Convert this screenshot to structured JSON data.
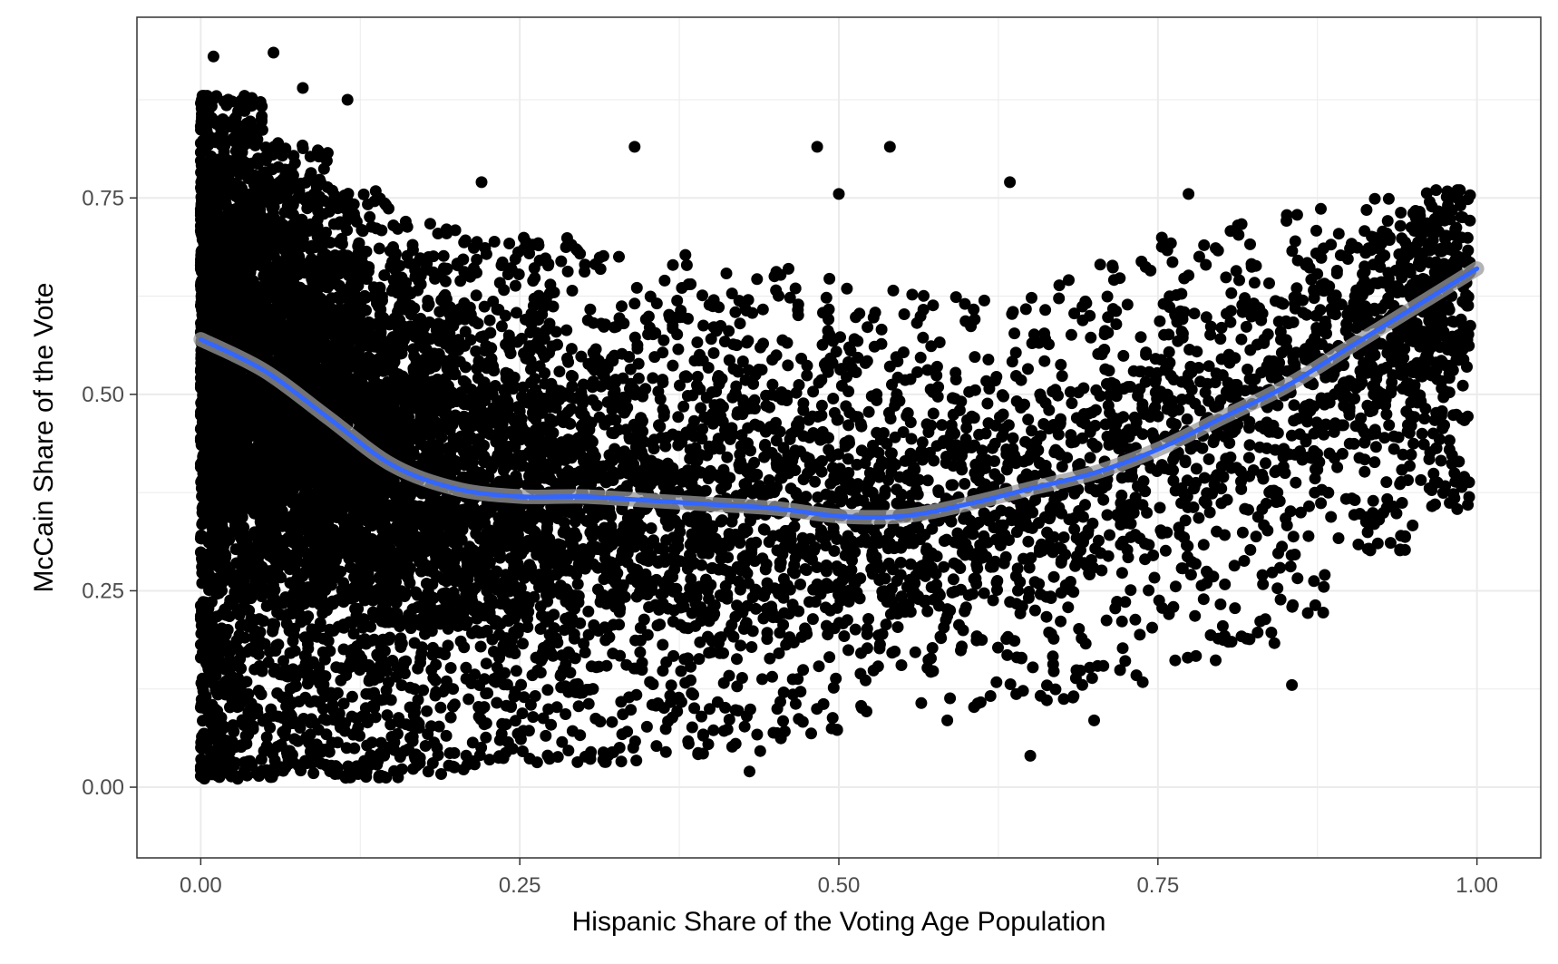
{
  "chart_data": {
    "type": "scatter",
    "title": "",
    "xlabel": "Hispanic Share of the Voting Age Population",
    "ylabel": "McCain Share of the Vote",
    "xlim": [
      -0.05,
      1.05
    ],
    "ylim": [
      -0.09,
      0.98
    ],
    "x_ticks": [
      0.0,
      0.25,
      0.5,
      0.75,
      1.0
    ],
    "x_tick_labels": [
      "0.00",
      "0.25",
      "0.50",
      "0.75",
      "1.00"
    ],
    "y_ticks": [
      0.0,
      0.25,
      0.5,
      0.75
    ],
    "y_tick_labels": [
      "0.00",
      "0.25",
      "0.50",
      "0.75"
    ],
    "grid": true,
    "legend": "none",
    "colors": {
      "points": "#000000",
      "smooth_line": "#3366ff",
      "confidence_band": "#999999",
      "grid": "#ebebeb",
      "panel_border": "#333333"
    },
    "smooth": {
      "method": "loess",
      "x": [
        0.0,
        0.05,
        0.1,
        0.15,
        0.2,
        0.25,
        0.3,
        0.35,
        0.4,
        0.45,
        0.5,
        0.55,
        0.6,
        0.65,
        0.7,
        0.75,
        0.8,
        0.85,
        0.9,
        0.95,
        1.0
      ],
      "y": [
        0.57,
        0.53,
        0.47,
        0.41,
        0.38,
        0.37,
        0.37,
        0.365,
        0.36,
        0.355,
        0.345,
        0.345,
        0.36,
        0.38,
        0.4,
        0.43,
        0.47,
        0.51,
        0.56,
        0.61,
        0.66
      ]
    },
    "outliers": [
      {
        "x": 0.01,
        "y": 0.93
      },
      {
        "x": 0.057,
        "y": 0.935
      },
      {
        "x": 0.08,
        "y": 0.89
      },
      {
        "x": 0.115,
        "y": 0.875
      },
      {
        "x": 0.34,
        "y": 0.815
      },
      {
        "x": 0.483,
        "y": 0.815
      },
      {
        "x": 0.54,
        "y": 0.815
      },
      {
        "x": 0.5,
        "y": 0.755
      },
      {
        "x": 0.634,
        "y": 0.77
      },
      {
        "x": 0.855,
        "y": 0.13
      },
      {
        "x": 0.65,
        "y": 0.04
      },
      {
        "x": 0.43,
        "y": 0.02
      },
      {
        "x": 0.7,
        "y": 0.085
      },
      {
        "x": 0.585,
        "y": 0.085
      },
      {
        "x": 0.88,
        "y": 0.255
      },
      {
        "x": 0.99,
        "y": 0.395
      },
      {
        "x": 0.22,
        "y": 0.77
      },
      {
        "x": 0.774,
        "y": 0.755
      }
    ],
    "clusters": [
      {
        "x0": 0.0,
        "x1": 0.05,
        "ymin": 0.01,
        "ymax": 0.88,
        "n": 2200
      },
      {
        "x0": 0.05,
        "x1": 0.1,
        "ymin": 0.01,
        "ymax": 0.82,
        "n": 1500
      },
      {
        "x0": 0.1,
        "x1": 0.15,
        "ymin": 0.01,
        "ymax": 0.76,
        "n": 1100
      },
      {
        "x0": 0.15,
        "x1": 0.2,
        "ymin": 0.01,
        "ymax": 0.72,
        "n": 800
      },
      {
        "x0": 0.2,
        "x1": 0.25,
        "ymin": 0.02,
        "ymax": 0.7,
        "n": 600
      },
      {
        "x0": 0.25,
        "x1": 0.3,
        "ymin": 0.03,
        "ymax": 0.7,
        "n": 480
      },
      {
        "x0": 0.3,
        "x1": 0.35,
        "ymin": 0.03,
        "ymax": 0.68,
        "n": 400
      },
      {
        "x0": 0.35,
        "x1": 0.4,
        "ymin": 0.04,
        "ymax": 0.68,
        "n": 330
      },
      {
        "x0": 0.4,
        "x1": 0.45,
        "ymin": 0.04,
        "ymax": 0.66,
        "n": 290
      },
      {
        "x0": 0.45,
        "x1": 0.5,
        "ymin": 0.06,
        "ymax": 0.66,
        "n": 260
      },
      {
        "x0": 0.5,
        "x1": 0.55,
        "ymin": 0.08,
        "ymax": 0.64,
        "n": 230
      },
      {
        "x0": 0.55,
        "x1": 0.6,
        "ymin": 0.1,
        "ymax": 0.63,
        "n": 210
      },
      {
        "x0": 0.6,
        "x1": 0.65,
        "ymin": 0.1,
        "ymax": 0.63,
        "n": 200
      },
      {
        "x0": 0.65,
        "x1": 0.7,
        "ymin": 0.1,
        "ymax": 0.65,
        "n": 190
      },
      {
        "x0": 0.7,
        "x1": 0.75,
        "ymin": 0.12,
        "ymax": 0.67,
        "n": 180
      },
      {
        "x0": 0.75,
        "x1": 0.8,
        "ymin": 0.16,
        "ymax": 0.7,
        "n": 180
      },
      {
        "x0": 0.8,
        "x1": 0.85,
        "ymin": 0.18,
        "ymax": 0.72,
        "n": 180
      },
      {
        "x0": 0.85,
        "x1": 0.9,
        "ymin": 0.22,
        "ymax": 0.74,
        "n": 200
      },
      {
        "x0": 0.9,
        "x1": 0.95,
        "ymin": 0.3,
        "ymax": 0.76,
        "n": 280
      },
      {
        "x0": 0.95,
        "x1": 0.995,
        "ymin": 0.35,
        "ymax": 0.76,
        "n": 320
      }
    ]
  }
}
